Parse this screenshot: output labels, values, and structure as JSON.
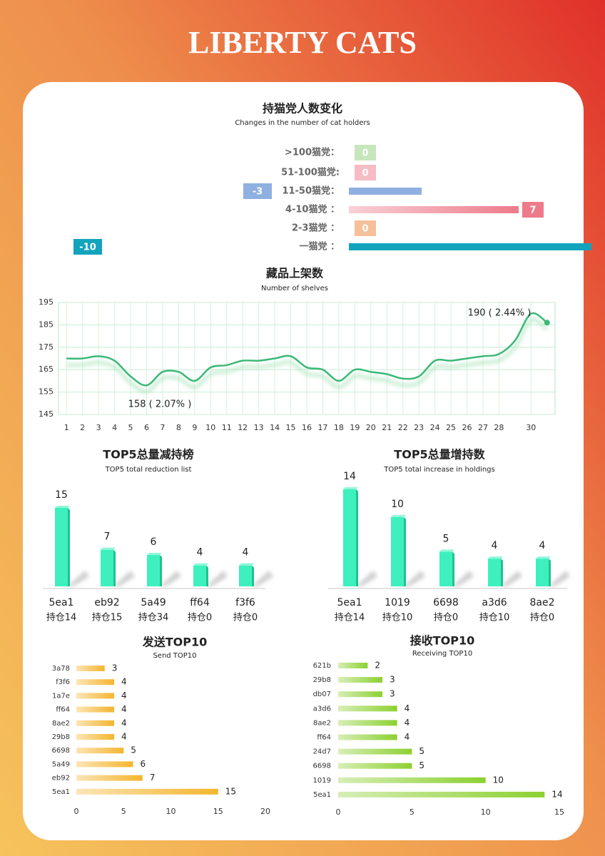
{
  "header": {
    "title": "LIBERTY CATS"
  },
  "chart_data": [
    {
      "type": "diverging-bar",
      "title": "持猫党人数变化",
      "subtitle": "Changes in the number of cat holders",
      "categories": [
        ">100猫党：",
        "51-100猫党:",
        "11-50猫党：",
        "4-10猫党 ：",
        "2-3猫党 ：",
        "一猫党 ："
      ],
      "values": [
        0,
        0,
        -3,
        7,
        0,
        -10
      ],
      "colors": [
        "#c6e6bc",
        "#f6bcc4",
        "#8fb0e0",
        "#ee7a8a",
        "#f6c09a",
        "#13a3bd"
      ]
    },
    {
      "type": "line",
      "title": "藏品上架数",
      "subtitle": "Number of shelves",
      "x": [
        1,
        2,
        3,
        4,
        5,
        6,
        7,
        8,
        9,
        10,
        11,
        12,
        13,
        14,
        15,
        16,
        17,
        18,
        19,
        20,
        21,
        22,
        23,
        24,
        25,
        26,
        27,
        28,
        29,
        30,
        31
      ],
      "values": [
        170,
        170,
        171,
        169,
        162,
        158,
        164,
        164,
        160,
        166,
        167,
        169,
        169,
        170,
        171,
        166,
        165,
        160,
        165,
        164,
        163,
        161,
        162,
        169,
        169,
        170,
        171,
        172,
        178,
        190,
        186
      ],
      "xlim": [
        0.5,
        31.5
      ],
      "xticks": [
        1,
        2,
        3,
        4,
        5,
        6,
        7,
        8,
        9,
        10,
        11,
        12,
        13,
        14,
        15,
        16,
        17,
        18,
        19,
        20,
        21,
        22,
        23,
        24,
        25,
        26,
        27,
        28,
        30
      ],
      "ylim": [
        145,
        195
      ],
      "yticks": [
        145,
        155,
        165,
        175,
        185,
        195
      ],
      "grid": true,
      "color": "#3cb878",
      "annotations": [
        "158 ( 2.07% )",
        "190 ( 2.44% )"
      ]
    },
    {
      "type": "column",
      "title": "TOP5总量减持榜",
      "subtitle": "TOP5 total reduction list",
      "categories": [
        "5ea1",
        "eb92",
        "5a49",
        "ff64",
        "f3f6"
      ],
      "sublabels": [
        "持仓14",
        "持仓15",
        "持仓34",
        "持仓0",
        "持仓0"
      ],
      "values": [
        15,
        7,
        6,
        4,
        4
      ],
      "color": "#3ef0be"
    },
    {
      "type": "column",
      "title": "TOP5总量增持数",
      "subtitle": "TOP5 total increase in holdings",
      "categories": [
        "5ea1",
        "1019",
        "6698",
        "a3d6",
        "8ae2"
      ],
      "sublabels": [
        "持仓14",
        "持仓10",
        "持仓0",
        "持仓10",
        "持仓0"
      ],
      "values": [
        14,
        10,
        5,
        4,
        4
      ],
      "color": "#3ef0be"
    },
    {
      "type": "hbar",
      "title": "发送TOP10",
      "subtitle": "Send TOP10",
      "categories": [
        "3a78",
        "f3f6",
        "1a7e",
        "ff64",
        "8ae2",
        "29b8",
        "6698",
        "5a49",
        "eb92",
        "5ea1"
      ],
      "values": [
        3,
        4,
        4,
        4,
        4,
        4,
        5,
        6,
        7,
        15
      ],
      "xlim": [
        0,
        20
      ],
      "xticks": [
        0,
        5,
        10,
        15,
        20
      ],
      "color": "#f5b52e"
    },
    {
      "type": "hbar",
      "title": "接收TOP10",
      "subtitle": "Receiving TOP10",
      "categories": [
        "621b",
        "29b8",
        "db07",
        "a3d6",
        "8ae2",
        "ff64",
        "24d7",
        "6698",
        "1019",
        "5ea1"
      ],
      "values": [
        2,
        3,
        3,
        4,
        4,
        4,
        5,
        5,
        10,
        14
      ],
      "xlim": [
        0,
        15
      ],
      "xticks": [
        0,
        5,
        10,
        15
      ],
      "color": "#8cd030"
    }
  ]
}
